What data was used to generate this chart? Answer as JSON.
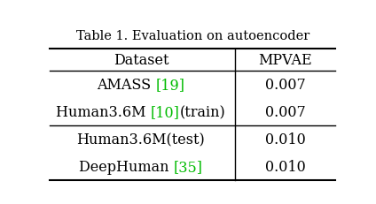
{
  "title": "Table 1. Evaluation on autoencoder",
  "col_headers": [
    "Dataset",
    "MPVAE"
  ],
  "rows": [
    [
      "AMASS [19]",
      "0.007"
    ],
    [
      "Human3.6M [10](train)",
      "0.007"
    ],
    [
      "Human3.6M(test)",
      "0.010"
    ],
    [
      "DeepHuman [35]",
      "0.010"
    ]
  ],
  "green_refs": {
    "AMASS [19]": {
      "prefix": "AMASS ",
      "ref": "[19]",
      "suffix": ""
    },
    "Human3.6M [10](train)": {
      "prefix": "Human3.6M ",
      "ref": "[10]",
      "suffix": "(train)"
    },
    "DeepHuman [35]": {
      "prefix": "DeepHuman ",
      "ref": "[35]",
      "suffix": ""
    }
  },
  "bg_color": "#ffffff",
  "text_color": "#000000",
  "green_color": "#00bb00",
  "title_fontsize": 10.5,
  "header_fontsize": 11.5,
  "cell_fontsize": 11.5
}
